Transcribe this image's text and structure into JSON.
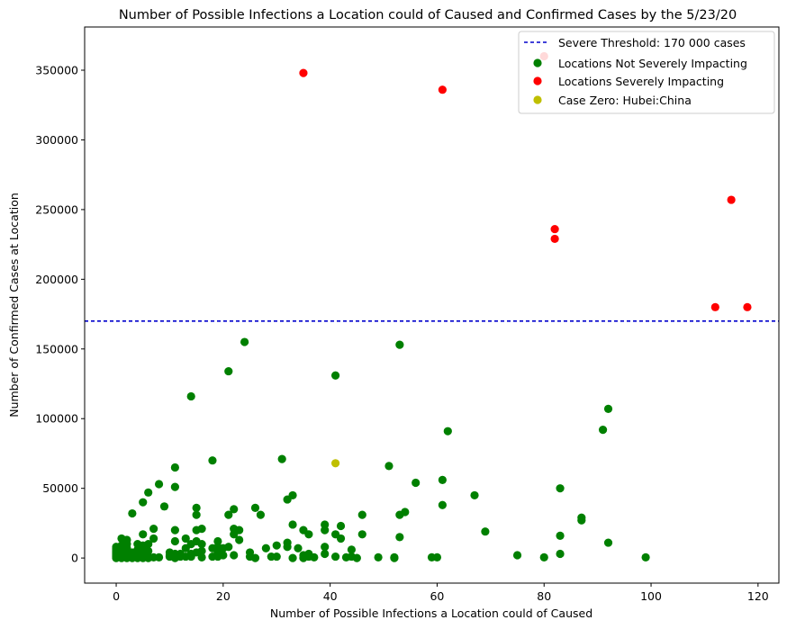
{
  "chart_data": {
    "type": "scatter",
    "title": "Number of Possible Infections a Location could of Caused and Confirmed Cases by the 5/23/20",
    "xlabel": "Number of Possible Infections a Location could of Caused",
    "ylabel": "Number of Confirmed Cases at Location",
    "xlim": [
      -5.9,
      123.9
    ],
    "ylim": [
      -18000,
      381000
    ],
    "xticks": [
      0,
      20,
      40,
      60,
      80,
      100,
      120
    ],
    "yticks": [
      0,
      50000,
      100000,
      150000,
      200000,
      250000,
      300000,
      350000
    ],
    "grid": false,
    "legend_position": "top-right",
    "threshold": {
      "label": "Severe Threshold: 170 000 cases",
      "value": 170000,
      "color": "#0000cc",
      "style": "dashed"
    },
    "series": [
      {
        "name": "Locations Not Severely Impacting",
        "color": "#008000",
        "points": [
          [
            0,
            0
          ],
          [
            0,
            500
          ],
          [
            0,
            1000
          ],
          [
            0,
            1500
          ],
          [
            0,
            2000
          ],
          [
            0,
            2500
          ],
          [
            0,
            3000
          ],
          [
            0,
            3500
          ],
          [
            0,
            4000
          ],
          [
            0,
            5000
          ],
          [
            0,
            6000
          ],
          [
            0,
            7000
          ],
          [
            0,
            8000
          ],
          [
            1,
            0
          ],
          [
            1,
            500
          ],
          [
            1,
            1000
          ],
          [
            1,
            2000
          ],
          [
            1,
            3000
          ],
          [
            1,
            4000
          ],
          [
            1,
            6000
          ],
          [
            1,
            9000
          ],
          [
            1,
            14000
          ],
          [
            2,
            0
          ],
          [
            2,
            500
          ],
          [
            2,
            1000
          ],
          [
            2,
            2000
          ],
          [
            2,
            5000
          ],
          [
            2,
            7000
          ],
          [
            2,
            10000
          ],
          [
            2,
            13000
          ],
          [
            3,
            0
          ],
          [
            3,
            500
          ],
          [
            3,
            1000
          ],
          [
            3,
            2000
          ],
          [
            3,
            3000
          ],
          [
            3,
            4000
          ],
          [
            3,
            32000
          ],
          [
            4,
            0
          ],
          [
            4,
            1000
          ],
          [
            4,
            2000
          ],
          [
            4,
            4000
          ],
          [
            4,
            6000
          ],
          [
            4,
            10000
          ],
          [
            5,
            0
          ],
          [
            5,
            500
          ],
          [
            5,
            1000
          ],
          [
            5,
            3000
          ],
          [
            5,
            5000
          ],
          [
            5,
            9000
          ],
          [
            5,
            17000
          ],
          [
            5,
            40000
          ],
          [
            6,
            0
          ],
          [
            6,
            1000
          ],
          [
            6,
            5000
          ],
          [
            6,
            10000
          ],
          [
            6,
            47000
          ],
          [
            7,
            500
          ],
          [
            7,
            14000
          ],
          [
            7,
            21000
          ],
          [
            8,
            500
          ],
          [
            8,
            53000
          ],
          [
            9,
            37000
          ],
          [
            10,
            1000
          ],
          [
            10,
            2000
          ],
          [
            10,
            4000
          ],
          [
            11,
            0
          ],
          [
            11,
            1000
          ],
          [
            11,
            3000
          ],
          [
            11,
            12000
          ],
          [
            11,
            20000
          ],
          [
            11,
            51000
          ],
          [
            11,
            65000
          ],
          [
            12,
            1000
          ],
          [
            12,
            3000
          ],
          [
            13,
            1000
          ],
          [
            13,
            7000
          ],
          [
            13,
            14000
          ],
          [
            14,
            1000
          ],
          [
            14,
            3000
          ],
          [
            14,
            10000
          ],
          [
            14,
            116000
          ],
          [
            15,
            4000
          ],
          [
            15,
            12000
          ],
          [
            15,
            20000
          ],
          [
            15,
            31000
          ],
          [
            15,
            36000
          ],
          [
            16,
            500
          ],
          [
            16,
            5000
          ],
          [
            16,
            10000
          ],
          [
            16,
            21000
          ],
          [
            18,
            1000
          ],
          [
            18,
            7000
          ],
          [
            18,
            70000
          ],
          [
            19,
            1000
          ],
          [
            19,
            4000
          ],
          [
            19,
            8000
          ],
          [
            19,
            12000
          ],
          [
            20,
            2000
          ],
          [
            20,
            7000
          ],
          [
            21,
            8000
          ],
          [
            21,
            31000
          ],
          [
            21,
            134000
          ],
          [
            22,
            2000
          ],
          [
            22,
            17000
          ],
          [
            22,
            21000
          ],
          [
            22,
            35000
          ],
          [
            23,
            13000
          ],
          [
            23,
            20000
          ],
          [
            24,
            155000
          ],
          [
            25,
            1000
          ],
          [
            25,
            4000
          ],
          [
            26,
            0
          ],
          [
            26,
            36000
          ],
          [
            27,
            31000
          ],
          [
            28,
            7000
          ],
          [
            29,
            1000
          ],
          [
            30,
            1000
          ],
          [
            30,
            9000
          ],
          [
            31,
            71000
          ],
          [
            32,
            8000
          ],
          [
            32,
            11000
          ],
          [
            32,
            42000
          ],
          [
            33,
            0
          ],
          [
            33,
            24000
          ],
          [
            33,
            45000
          ],
          [
            34,
            7000
          ],
          [
            35,
            0
          ],
          [
            35,
            2000
          ],
          [
            35,
            20000
          ],
          [
            36,
            1000
          ],
          [
            36,
            3000
          ],
          [
            36,
            17000
          ],
          [
            37,
            500
          ],
          [
            39,
            3000
          ],
          [
            39,
            8000
          ],
          [
            39,
            20000
          ],
          [
            39,
            24000
          ],
          [
            41,
            1000
          ],
          [
            41,
            17000
          ],
          [
            41,
            131000
          ],
          [
            42,
            14000
          ],
          [
            42,
            23000
          ],
          [
            43,
            500
          ],
          [
            44,
            1000
          ],
          [
            44,
            6000
          ],
          [
            45,
            0
          ],
          [
            46,
            17000
          ],
          [
            46,
            31000
          ],
          [
            49,
            500
          ],
          [
            51,
            66000
          ],
          [
            52,
            0
          ],
          [
            52,
            500
          ],
          [
            53,
            15000
          ],
          [
            53,
            31000
          ],
          [
            53,
            153000
          ],
          [
            54,
            33000
          ],
          [
            56,
            54000
          ],
          [
            59,
            500
          ],
          [
            60,
            500
          ],
          [
            61,
            38000
          ],
          [
            61,
            56000
          ],
          [
            62,
            91000
          ],
          [
            67,
            45000
          ],
          [
            69,
            19000
          ],
          [
            75,
            2000
          ],
          [
            80,
            500
          ],
          [
            83,
            3000
          ],
          [
            83,
            16000
          ],
          [
            83,
            50000
          ],
          [
            87,
            27000
          ],
          [
            87,
            29000
          ],
          [
            91,
            92000
          ],
          [
            92,
            11000
          ],
          [
            92,
            107000
          ],
          [
            99,
            500
          ]
        ]
      },
      {
        "name": "Locations Severely Impacting",
        "color": "#ff0000",
        "points": [
          [
            35,
            348000
          ],
          [
            61,
            336000
          ],
          [
            80,
            360000
          ],
          [
            82,
            229000
          ],
          [
            82,
            236000
          ],
          [
            112,
            180000
          ],
          [
            115,
            257000
          ],
          [
            118,
            180000
          ]
        ]
      },
      {
        "name": "Case Zero: Hubei:China",
        "color": "#bfbf00",
        "points": [
          [
            41,
            68000
          ]
        ]
      }
    ]
  }
}
